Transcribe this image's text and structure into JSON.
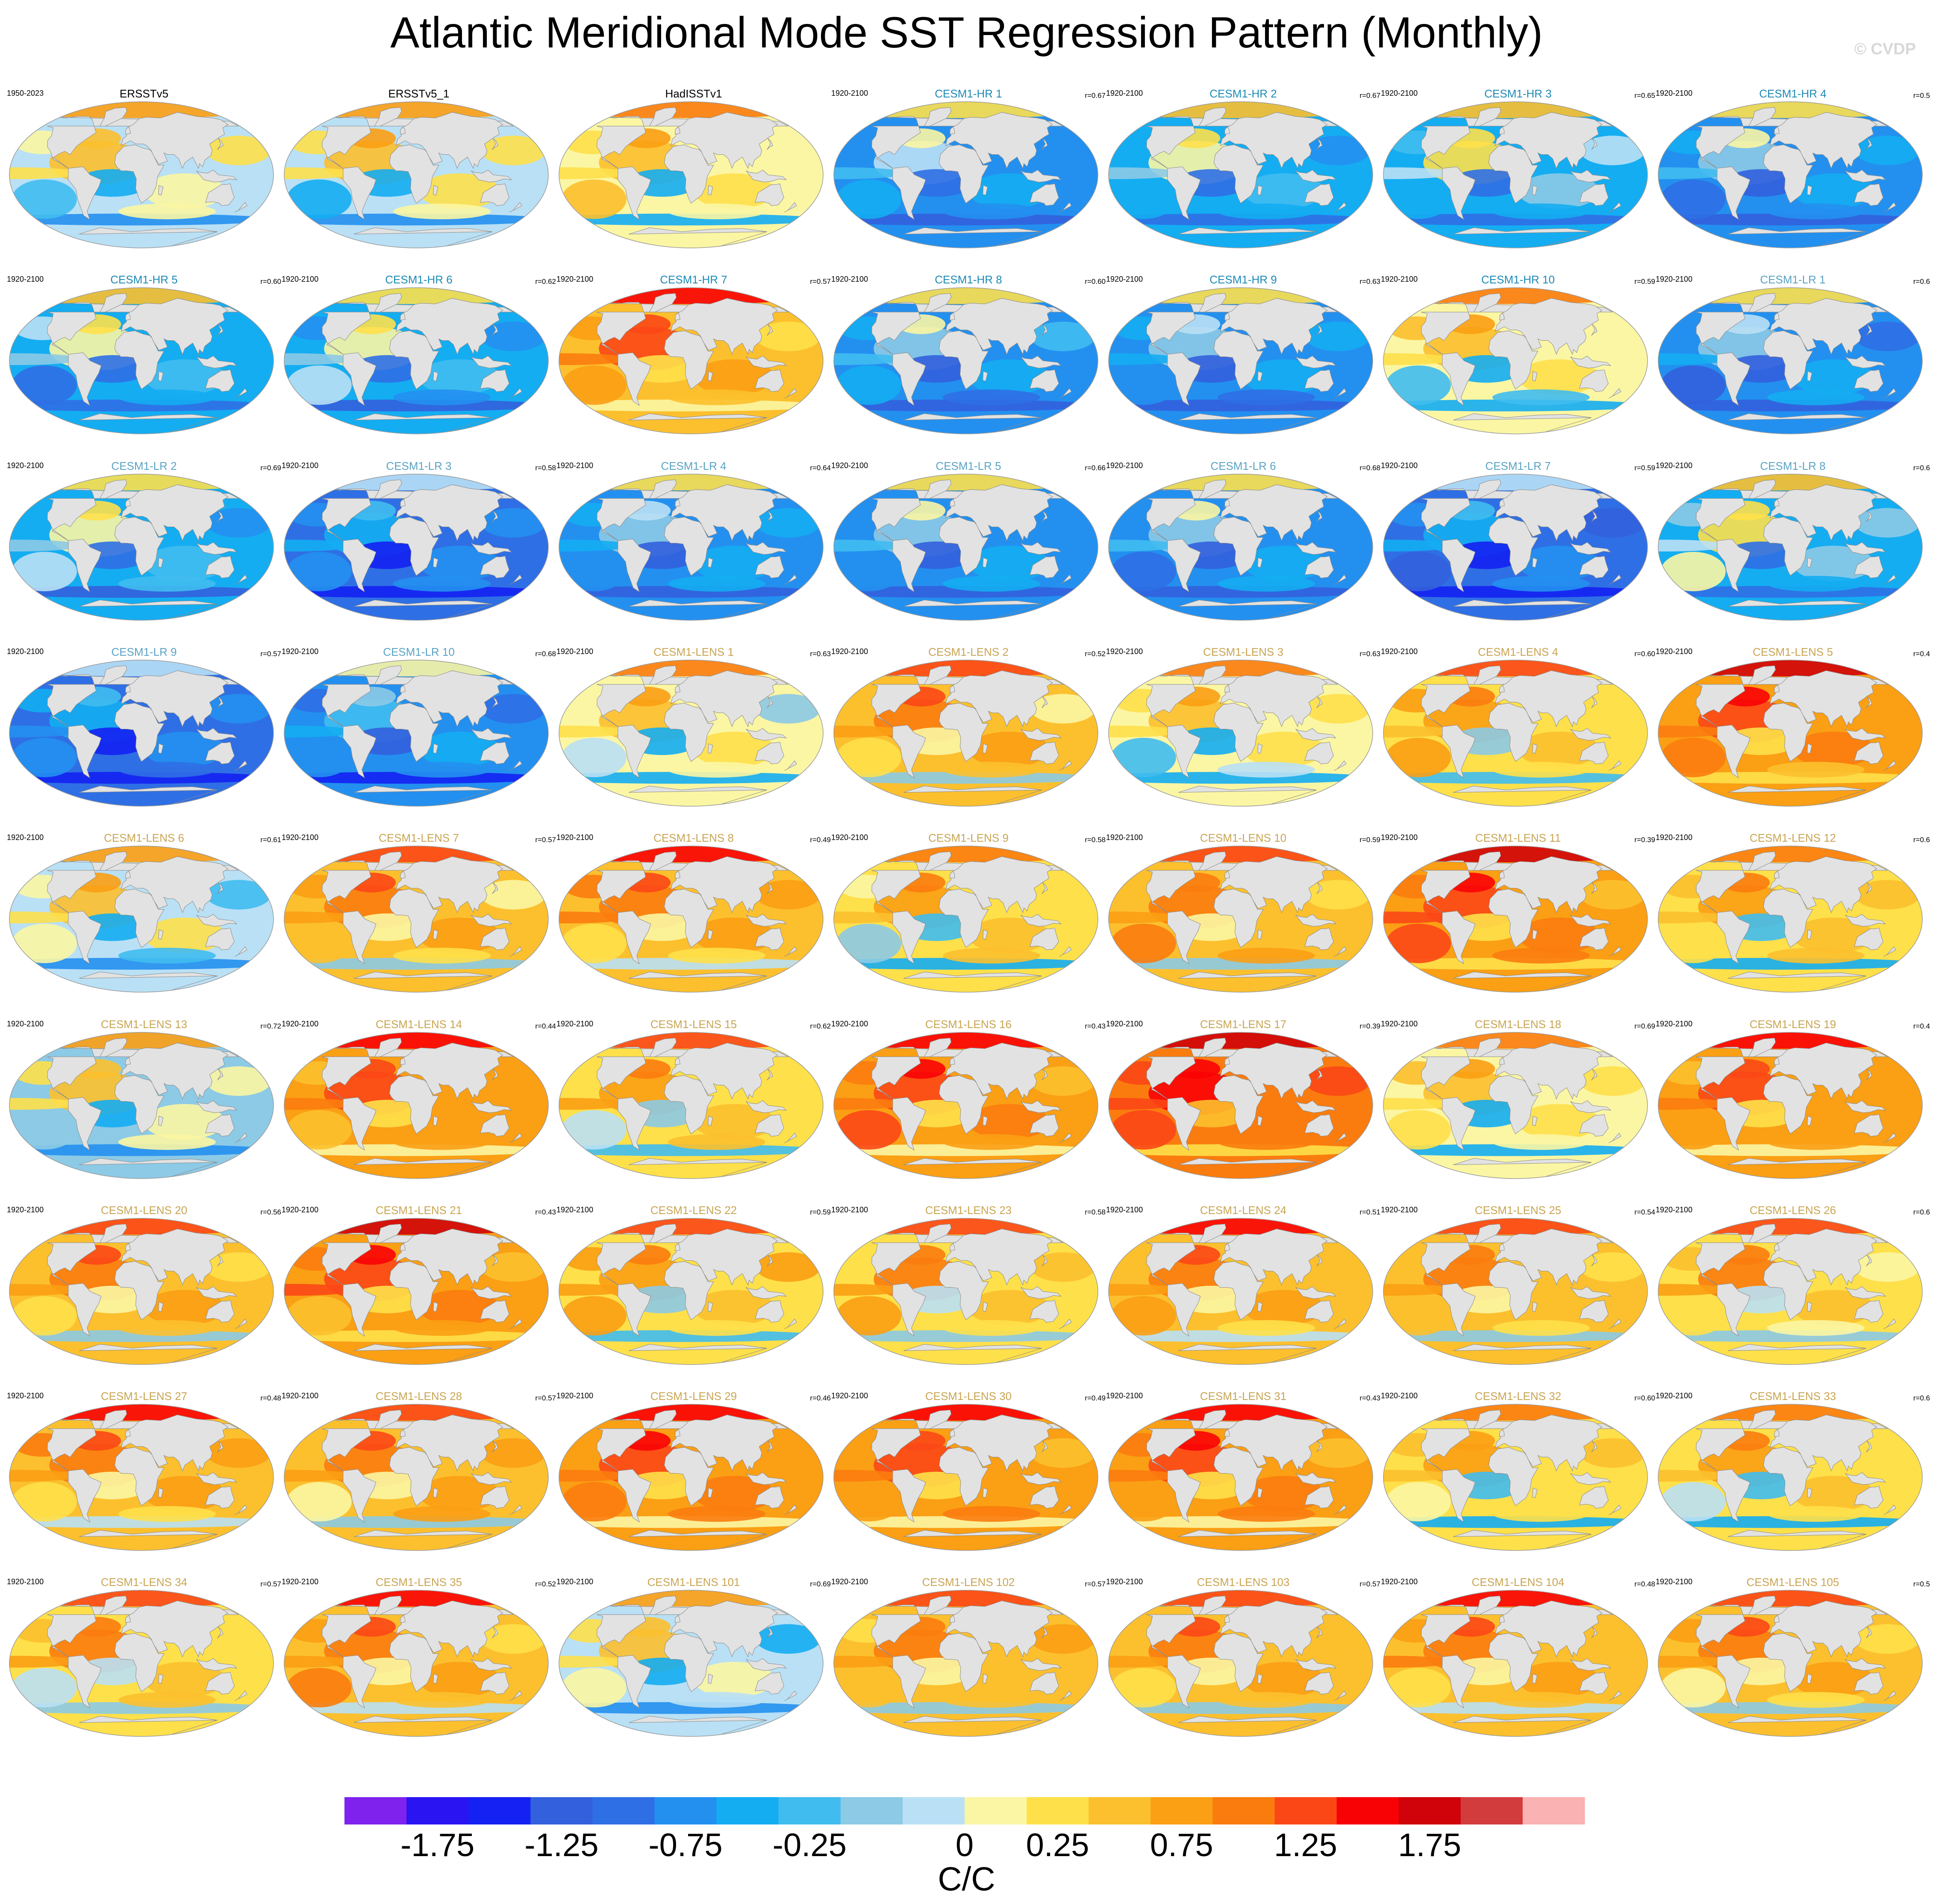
{
  "title": "Atlantic Meridional Mode SST Regression Pattern (Monthly)",
  "watermark": "© CVDP",
  "colorbar": {
    "colors": [
      "#7f22ee",
      "#2a14f2",
      "#1421f2",
      "#3360dd",
      "#2f6fe5",
      "#2390f0",
      "#14adf2",
      "#40bcef",
      "#8ccae6",
      "#b9e0f5",
      "#fbf6a3",
      "#fee04a",
      "#fcc02e",
      "#fb9f14",
      "#fb7c0e",
      "#fb4716",
      "#f90206",
      "#cf0309",
      "#d33c3c",
      "#fbb2b2"
    ],
    "tick_labels": [
      "-1.75",
      "-1.25",
      "-0.75",
      "-0.25",
      "0",
      "0.25",
      "0.75",
      "1.25",
      "1.75"
    ],
    "units": "C/C"
  },
  "panels": [
    {
      "title": "ERSSTv5",
      "years": "1950-2023",
      "r": "",
      "tcolor": "#000000",
      "base": 0.05
    },
    {
      "title": "ERSSTv5_1",
      "years": "",
      "r": "",
      "tcolor": "#000000",
      "base": 0.1
    },
    {
      "title": "HadISSTv1",
      "years": "",
      "r": "",
      "tcolor": "#000000",
      "base": 0.12
    },
    {
      "title": "CESM1-HR 1",
      "years": "1920-2100",
      "r": "r=0.67",
      "tcolor": "#1c8ab5",
      "base": -0.5
    },
    {
      "title": "CESM1-HR 2",
      "years": "1920-2100",
      "r": "r=0.67",
      "tcolor": "#1c8ab5",
      "base": -0.35
    },
    {
      "title": "CESM1-HR 3",
      "years": "1920-2100",
      "r": "r=0.65",
      "tcolor": "#1c8ab5",
      "base": -0.3
    },
    {
      "title": "CESM1-HR 4",
      "years": "1920-2100",
      "r": "r=0.5",
      "tcolor": "#1c8ab5",
      "base": -0.55
    },
    {
      "title": "CESM1-HR 5",
      "years": "1920-2100",
      "r": "r=0.60",
      "tcolor": "#1c8ab5",
      "base": -0.35
    },
    {
      "title": "CESM1-HR 6",
      "years": "1920-2100",
      "r": "r=0.62",
      "tcolor": "#1c8ab5",
      "base": -0.4
    },
    {
      "title": "CESM1-HR 7",
      "years": "1920-2100",
      "r": "r=0.57",
      "tcolor": "#1c8ab5",
      "base": 0.75
    },
    {
      "title": "CESM1-HR 8",
      "years": "1920-2100",
      "r": "r=0.60",
      "tcolor": "#1c8ab5",
      "base": -0.55
    },
    {
      "title": "CESM1-HR 9",
      "years": "1920-2100",
      "r": "r=0.63",
      "tcolor": "#1c8ab5",
      "base": -0.6
    },
    {
      "title": "CESM1-HR 10",
      "years": "1920-2100",
      "r": "r=0.59",
      "tcolor": "#1c8ab5",
      "base": 0.15
    },
    {
      "title": "CESM1-LR 1",
      "years": "1920-2100",
      "r": "r=0.6",
      "tcolor": "#5aa3c4",
      "base": -0.6
    },
    {
      "title": "CESM1-LR 2",
      "years": "1920-2100",
      "r": "r=0.69",
      "tcolor": "#5aa3c4",
      "base": -0.4
    },
    {
      "title": "CESM1-LR 3",
      "years": "1920-2100",
      "r": "r=0.58",
      "tcolor": "#5aa3c4",
      "base": -0.8
    },
    {
      "title": "CESM1-LR 4",
      "years": "1920-2100",
      "r": "r=0.64",
      "tcolor": "#5aa3c4",
      "base": -0.6
    },
    {
      "title": "CESM1-LR 5",
      "years": "1920-2100",
      "r": "r=0.66",
      "tcolor": "#5aa3c4",
      "base": -0.55
    },
    {
      "title": "CESM1-LR 6",
      "years": "1920-2100",
      "r": "r=0.68",
      "tcolor": "#5aa3c4",
      "base": -0.55
    },
    {
      "title": "CESM1-LR 7",
      "years": "1920-2100",
      "r": "r=0.59",
      "tcolor": "#5aa3c4",
      "base": -0.8
    },
    {
      "title": "CESM1-LR 8",
      "years": "1920-2100",
      "r": "r=0.6",
      "tcolor": "#5aa3c4",
      "base": -0.3
    },
    {
      "title": "CESM1-LR 9",
      "years": "1920-2100",
      "r": "r=0.57",
      "tcolor": "#5aa3c4",
      "base": -0.85
    },
    {
      "title": "CESM1-LR 10",
      "years": "1920-2100",
      "r": "r=0.68",
      "tcolor": "#5aa3c4",
      "base": -0.7
    },
    {
      "title": "CESM1-LENS 1",
      "years": "1920-2100",
      "r": "r=0.63",
      "tcolor": "#c9a553",
      "base": 0.15
    },
    {
      "title": "CESM1-LENS 2",
      "years": "1920-2100",
      "r": "r=0.52",
      "tcolor": "#c9a553",
      "base": 0.6
    },
    {
      "title": "CESM1-LENS 3",
      "years": "1920-2100",
      "r": "r=0.63",
      "tcolor": "#c9a553",
      "base": 0.15
    },
    {
      "title": "CESM1-LENS 4",
      "years": "1920-2100",
      "r": "r=0.60",
      "tcolor": "#c9a553",
      "base": 0.4
    },
    {
      "title": "CESM1-LENS 5",
      "years": "1920-2100",
      "r": "r=0.4",
      "tcolor": "#c9a553",
      "base": 0.9
    },
    {
      "title": "CESM1-LENS 6",
      "years": "1920-2100",
      "r": "r=0.61",
      "tcolor": "#c9a553",
      "base": 0.1
    },
    {
      "title": "CESM1-LENS 7",
      "years": "1920-2100",
      "r": "r=0.57",
      "tcolor": "#c9a553",
      "base": 0.6
    },
    {
      "title": "CESM1-LENS 8",
      "years": "1920-2100",
      "r": "r=0.49",
      "tcolor": "#c9a553",
      "base": 0.7
    },
    {
      "title": "CESM1-LENS 9",
      "years": "1920-2100",
      "r": "r=0.58",
      "tcolor": "#c9a553",
      "base": 0.35
    },
    {
      "title": "CESM1-LENS 10",
      "years": "1920-2100",
      "r": "r=0.59",
      "tcolor": "#c9a553",
      "base": 0.55
    },
    {
      "title": "CESM1-LENS 11",
      "years": "1920-2100",
      "r": "r=0.39",
      "tcolor": "#c9a553",
      "base": 0.95
    },
    {
      "title": "CESM1-LENS 12",
      "years": "1920-2100",
      "r": "r=0.6",
      "tcolor": "#c9a553",
      "base": 0.35
    },
    {
      "title": "CESM1-LENS 13",
      "years": "1920-2100",
      "r": "r=0.72",
      "tcolor": "#c9a553",
      "base": 0.0
    },
    {
      "title": "CESM1-LENS 14",
      "years": "1920-2100",
      "r": "r=0.44",
      "tcolor": "#c9a553",
      "base": 0.8
    },
    {
      "title": "CESM1-LENS 15",
      "years": "1920-2100",
      "r": "r=0.62",
      "tcolor": "#c9a553",
      "base": 0.45
    },
    {
      "title": "CESM1-LENS 16",
      "years": "1920-2100",
      "r": "r=0.43",
      "tcolor": "#c9a553",
      "base": 0.85
    },
    {
      "title": "CESM1-LENS 17",
      "years": "1920-2100",
      "r": "r=0.39",
      "tcolor": "#c9a553",
      "base": 1.05
    },
    {
      "title": "CESM1-LENS 18",
      "years": "1920-2100",
      "r": "r=0.69",
      "tcolor": "#c9a553",
      "base": 0.15
    },
    {
      "title": "CESM1-LENS 19",
      "years": "1920-2100",
      "r": "r=0.4",
      "tcolor": "#c9a553",
      "base": 0.8
    },
    {
      "title": "CESM1-LENS 20",
      "years": "1920-2100",
      "r": "r=0.56",
      "tcolor": "#c9a553",
      "base": 0.6
    },
    {
      "title": "CESM1-LENS 21",
      "years": "1920-2100",
      "r": "r=0.43",
      "tcolor": "#c9a553",
      "base": 0.95
    },
    {
      "title": "CESM1-LENS 22",
      "years": "1920-2100",
      "r": "r=0.59",
      "tcolor": "#c9a553",
      "base": 0.45
    },
    {
      "title": "CESM1-LENS 23",
      "years": "1920-2100",
      "r": "r=0.58",
      "tcolor": "#c9a553",
      "base": 0.5
    },
    {
      "title": "CESM1-LENS 24",
      "years": "1920-2100",
      "r": "r=0.51",
      "tcolor": "#c9a553",
      "base": 0.65
    },
    {
      "title": "CESM1-LENS 25",
      "years": "1920-2100",
      "r": "r=0.54",
      "tcolor": "#c9a553",
      "base": 0.55
    },
    {
      "title": "CESM1-LENS 26",
      "years": "1920-2100",
      "r": "r=0.6",
      "tcolor": "#c9a553",
      "base": 0.5
    },
    {
      "title": "CESM1-LENS 27",
      "years": "1920-2100",
      "r": "r=0.48",
      "tcolor": "#c9a553",
      "base": 0.65
    },
    {
      "title": "CESM1-LENS 28",
      "years": "1920-2100",
      "r": "r=0.57",
      "tcolor": "#c9a553",
      "base": 0.6
    },
    {
      "title": "CESM1-LENS 29",
      "years": "1920-2100",
      "r": "r=0.46",
      "tcolor": "#c9a553",
      "base": 0.85
    },
    {
      "title": "CESM1-LENS 30",
      "years": "1920-2100",
      "r": "r=0.49",
      "tcolor": "#c9a553",
      "base": 0.8
    },
    {
      "title": "CESM1-LENS 31",
      "years": "1920-2100",
      "r": "r=0.43",
      "tcolor": "#c9a553",
      "base": 0.85
    },
    {
      "title": "CESM1-LENS 32",
      "years": "1920-2100",
      "r": "r=0.60",
      "tcolor": "#c9a553",
      "base": 0.3
    },
    {
      "title": "CESM1-LENS 33",
      "years": "1920-2100",
      "r": "r=0.6",
      "tcolor": "#c9a553",
      "base": 0.35
    },
    {
      "title": "CESM1-LENS 34",
      "years": "1920-2100",
      "r": "r=0.57",
      "tcolor": "#c9a553",
      "base": 0.5
    },
    {
      "title": "CESM1-LENS 35",
      "years": "1920-2100",
      "r": "r=0.52",
      "tcolor": "#c9a553",
      "base": 0.65
    },
    {
      "title": "CESM1-LENS 101",
      "years": "1920-2100",
      "r": "r=0.69",
      "tcolor": "#c9a553",
      "base": 0.05
    },
    {
      "title": "CESM1-LENS 102",
      "years": "1920-2100",
      "r": "r=0.57",
      "tcolor": "#c9a553",
      "base": 0.55
    },
    {
      "title": "CESM1-LENS 103",
      "years": "1920-2100",
      "r": "r=0.57",
      "tcolor": "#c9a553",
      "base": 0.6
    },
    {
      "title": "CESM1-LENS 104",
      "years": "1920-2100",
      "r": "r=0.48",
      "tcolor": "#c9a553",
      "base": 0.7
    },
    {
      "title": "CESM1-LENS 105",
      "years": "1920-2100",
      "r": "r=0.5",
      "tcolor": "#c9a553",
      "base": 0.6
    }
  ]
}
